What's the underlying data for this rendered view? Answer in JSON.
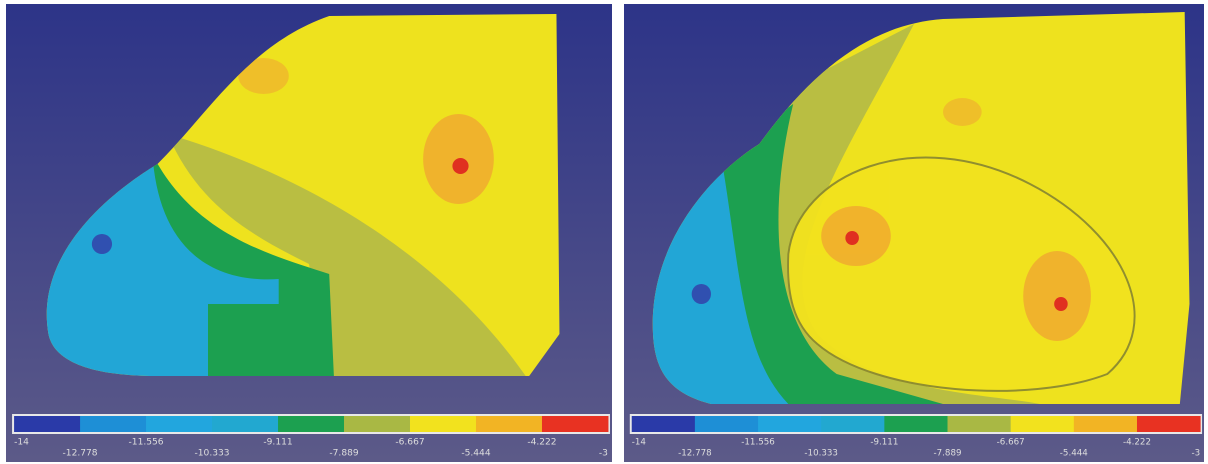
{
  "colorbar": {
    "colors": [
      "#2a3aa8",
      "#1e8fd6",
      "#22a6de",
      "#22a8d0",
      "#1ca050",
      "#a9b844",
      "#f2e21e",
      "#f2b424",
      "#e83222"
    ],
    "ticks": [
      -14,
      -12.778,
      -11.556,
      -10.333,
      -9.111,
      -7.889,
      -6.667,
      -5.444,
      -4.222,
      -3
    ]
  }
}
